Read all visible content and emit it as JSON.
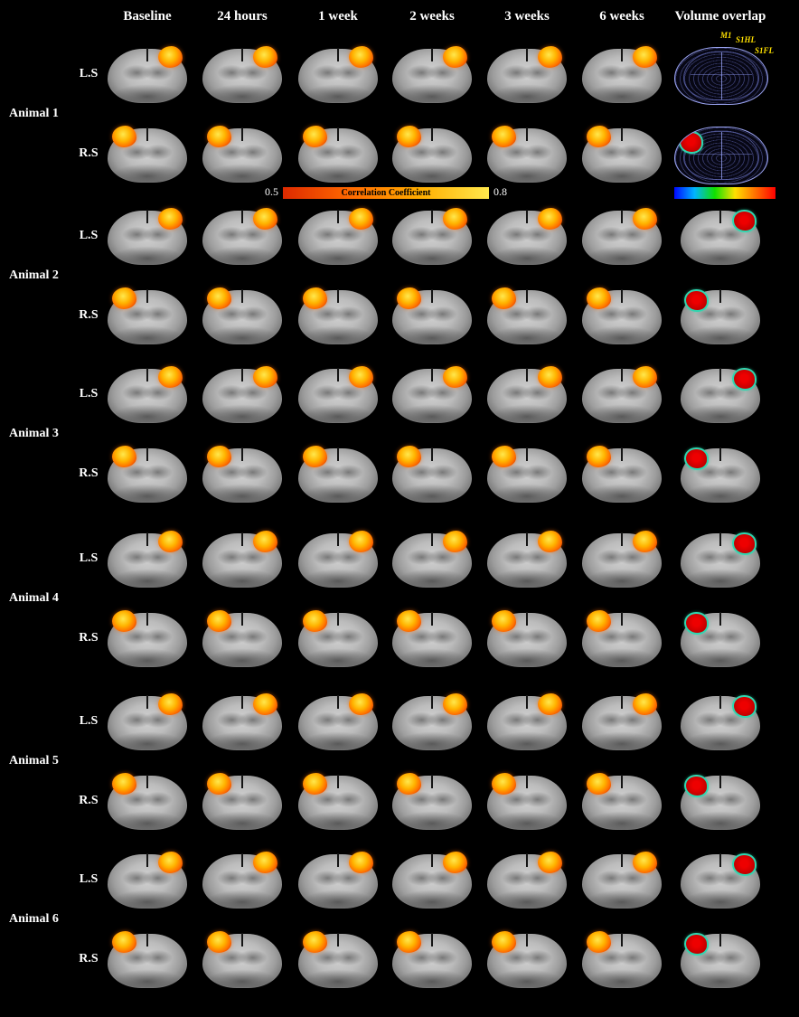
{
  "header": {
    "columns": [
      "Baseline",
      "24 hours",
      "1 week",
      "2 weeks",
      "3 weeks",
      "6 weeks",
      "Volume overlap"
    ]
  },
  "animals": [
    {
      "label": "Animal 1",
      "seeds": [
        "L.S",
        "R.S"
      ]
    },
    {
      "label": "Animal 2",
      "seeds": [
        "L.S",
        "R.S"
      ]
    },
    {
      "label": "Animal 3",
      "seeds": [
        "L.S",
        "R.S"
      ]
    },
    {
      "label": "Animal 4",
      "seeds": [
        "L.S",
        "R.S"
      ]
    },
    {
      "label": "Animal 5",
      "seeds": [
        "L.S",
        "R.S"
      ]
    },
    {
      "label": "Animal 6",
      "seeds": [
        "L.S",
        "R.S"
      ]
    }
  ],
  "colorbar": {
    "min_label": "0.5",
    "max_label": "0.8",
    "title": "Correlation Coefficient",
    "gradient": [
      "#dd2a00",
      "#ff6a00",
      "#ffae00",
      "#ffe84d"
    ]
  },
  "overlap_colorbar": {
    "gradient": [
      "#0008ff",
      "#00b4ff",
      "#10e000",
      "#ffe000",
      "#ff7000",
      "#ff0000"
    ]
  },
  "atlas": {
    "labels": [
      "M1",
      "S1HL",
      "S1FL"
    ],
    "label_color": "#ffe100"
  },
  "colors": {
    "background": "#000000",
    "text": "#ffffff",
    "activation_core": "#ffe84d",
    "activation_mid": "#ff7300",
    "activation_edge": "#d42600",
    "overlap_fill": "#dd0000",
    "overlap_ring": "#2fd6b0",
    "atlas_line": "#9aa3f0"
  }
}
